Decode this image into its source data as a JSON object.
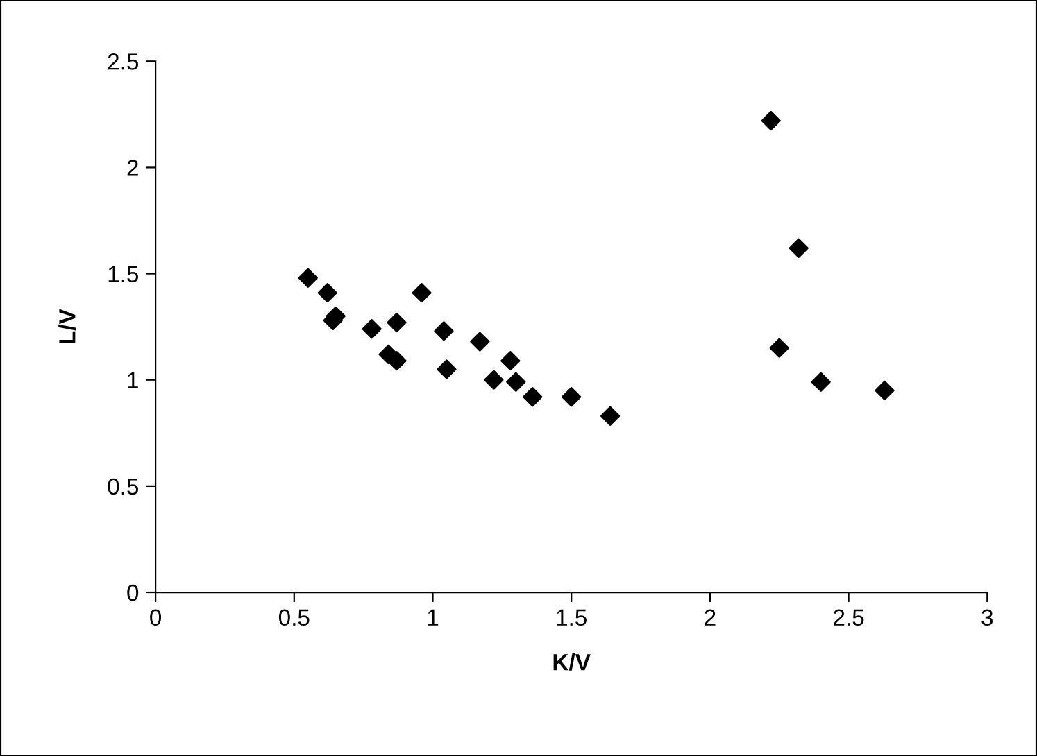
{
  "chart_data": {
    "type": "scatter",
    "xlabel": "K/V",
    "ylabel": "L/V",
    "x": [
      0.55,
      0.62,
      0.64,
      0.65,
      0.78,
      0.87,
      0.84,
      0.87,
      0.96,
      1.04,
      1.05,
      1.17,
      1.22,
      1.28,
      1.3,
      1.36,
      1.5,
      1.64,
      2.22,
      2.32,
      2.25,
      2.4,
      2.63
    ],
    "values": [
      1.48,
      1.41,
      1.28,
      1.3,
      1.24,
      1.27,
      1.12,
      1.09,
      1.41,
      1.23,
      1.05,
      1.18,
      1.0,
      1.09,
      0.99,
      0.92,
      0.92,
      0.83,
      2.22,
      1.62,
      1.15,
      0.99,
      0.95
    ],
    "color": "#000000",
    "marker": "diamond",
    "xlim": [
      0,
      3
    ],
    "xticks": [
      0,
      0.5,
      1,
      1.5,
      2,
      2.5,
      3
    ],
    "ylim": [
      0,
      2.5
    ],
    "yticks": [
      0,
      0.5,
      1,
      1.5,
      2,
      2.5
    ],
    "grid": false,
    "legend": false
  }
}
